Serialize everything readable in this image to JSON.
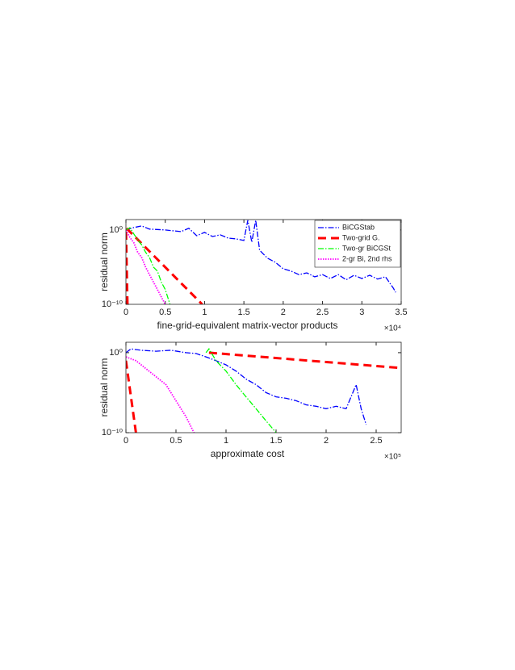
{
  "chart_data": [
    {
      "type": "line",
      "ylabel": "residual norm",
      "xlabel": "fine-grid-equivalent matrix-vector products",
      "x_multiplier": "×10⁴",
      "xlim": [
        0,
        35000
      ],
      "ylim": [
        1e-10,
        25
      ],
      "log_y": true,
      "legend": "upper right",
      "xticks": [
        0,
        {
          "value": 5000,
          "label": "0.5"
        },
        {
          "value": 10000,
          "label": "1"
        },
        {
          "value": 15000,
          "label": "1.5"
        },
        {
          "value": 20000,
          "label": "2"
        },
        {
          "value": 25000,
          "label": "2.5"
        },
        {
          "value": 30000,
          "label": "3"
        },
        {
          "value": 35000,
          "label": "3.5"
        }
      ],
      "yticks": [
        {
          "value": 1e-10,
          "label": "10⁻¹⁰"
        },
        {
          "value": 1,
          "label": "10⁰"
        }
      ],
      "series": [
        {
          "name": "BiCGStab",
          "color": "#0000ff",
          "style": "dash-dot",
          "x": [
            0,
            1000,
            2000,
            3000,
            5000,
            7000,
            8000,
            9000,
            10000,
            11000,
            12000,
            13000,
            14000,
            15000,
            15500,
            16000,
            16500,
            17000,
            17500,
            18000,
            19000,
            20000,
            21000,
            22000,
            23000,
            24000,
            25000,
            26000,
            27000,
            28000,
            29000,
            30000,
            31000,
            32000,
            33000,
            33500,
            34000,
            34300
          ],
          "values": [
            1,
            2.1,
            3.5,
            1.3,
            1,
            0.6,
            1.7,
            0.17,
            0.47,
            0.13,
            0.22,
            0.08,
            0.063,
            0.039,
            20,
            0.023,
            20,
            0.0019,
            0.00055,
            0.00016,
            4.5e-05,
            6e-06,
            3e-06,
            1e-06,
            1.7e-06,
            5e-07,
            1e-06,
            3e-07,
            1e-06,
            2e-07,
            8e-07,
            3e-07,
            8e-07,
            2.5e-07,
            5e-07,
            8.5e-08,
            1.5e-08,
            4e-09
          ]
        },
        {
          "name": "Two-grid G.",
          "color": "#ff0000",
          "style": "dashed",
          "x": [
            200,
            0,
            9700
          ],
          "values": [
            1e-10,
            2,
            1e-10
          ]
        },
        {
          "name": "Two-gr BiCGSt",
          "color": "#00ff00",
          "style": "dash-dot",
          "x": [
            0,
            500,
            1000,
            1500,
            2000,
            2500,
            3000,
            3500,
            4000,
            4500,
            5000,
            5600
          ],
          "values": [
            1,
            2,
            0.3,
            0.05,
            0.01,
            0.001,
            0.0002,
            1e-05,
            3e-06,
            1e-07,
            1e-08,
            1e-10
          ]
        },
        {
          "name": "2-gr Bi, 2nd rhs",
          "color": "#ff00ff",
          "style": "dotted",
          "x": [
            0,
            500,
            1000,
            1500,
            2000,
            2500,
            3000,
            3500,
            4000,
            4500,
            5000
          ],
          "values": [
            1,
            0.1,
            0.02,
            0.001,
            0.0002,
            1e-05,
            1e-06,
            1e-07,
            1e-08,
            1e-09,
            1e-10
          ]
        }
      ]
    },
    {
      "type": "line",
      "ylabel": "residual norm",
      "xlabel": "approximate cost",
      "x_multiplier": "×10⁵",
      "xlim": [
        0,
        275000
      ],
      "ylim": [
        1e-10,
        20
      ],
      "log_y": true,
      "xticks": [
        0,
        {
          "value": 50000,
          "label": "0.5"
        },
        {
          "value": 100000,
          "label": "1"
        },
        {
          "value": 150000,
          "label": "1.5"
        },
        {
          "value": 200000,
          "label": "2"
        },
        {
          "value": 250000,
          "label": "2.5"
        }
      ],
      "yticks": [
        {
          "value": 1e-10,
          "label": "10⁻¹⁰"
        },
        {
          "value": 1,
          "label": "10⁰"
        }
      ],
      "series": [
        {
          "color": "#0000ff",
          "style": "dash-dot",
          "x": [
            0,
            5000,
            15000,
            30000,
            45000,
            60000,
            70000,
            80000,
            90000,
            100000,
            110000,
            120000,
            130000,
            140000,
            150000,
            160000,
            170000,
            180000,
            190000,
            200000,
            210000,
            220000,
            230000,
            235000,
            240000
          ],
          "values": [
            1,
            3,
            2,
            1.5,
            2,
            1,
            0.8,
            0.3,
            0.1,
            0.03,
            0.005,
            0.0005,
            0.0001,
            1e-05,
            3e-06,
            2e-06,
            1e-06,
            3e-07,
            2e-07,
            1e-07,
            2e-07,
            1e-07,
            0.0001,
            1e-07,
            1e-09
          ]
        },
        {
          "color": "#ff0000",
          "style": "dashed",
          "x": [
            0,
            10000,
            45000,
            83000,
            275000
          ],
          "values": [
            0.1,
            1e-10,
            null,
            1,
            0.012
          ]
        },
        {
          "color": "#00ff00",
          "style": "dash-dot",
          "x": [
            80000,
            83000,
            90000,
            100000,
            110000,
            120000,
            130000,
            140000,
            150000
          ],
          "values": [
            1,
            3,
            0.1,
            0.005,
            0.0001,
            3e-06,
            1e-07,
            3e-09,
            1e-10
          ]
        },
        {
          "color": "#ff00ff",
          "style": "dotted",
          "x": [
            0,
            10000,
            20000,
            30000,
            40000,
            50000,
            60000,
            68000
          ],
          "values": [
            0.3,
            0.1,
            0.01,
            0.001,
            0.0001,
            1e-06,
            1e-08,
            1e-10
          ]
        }
      ]
    }
  ]
}
